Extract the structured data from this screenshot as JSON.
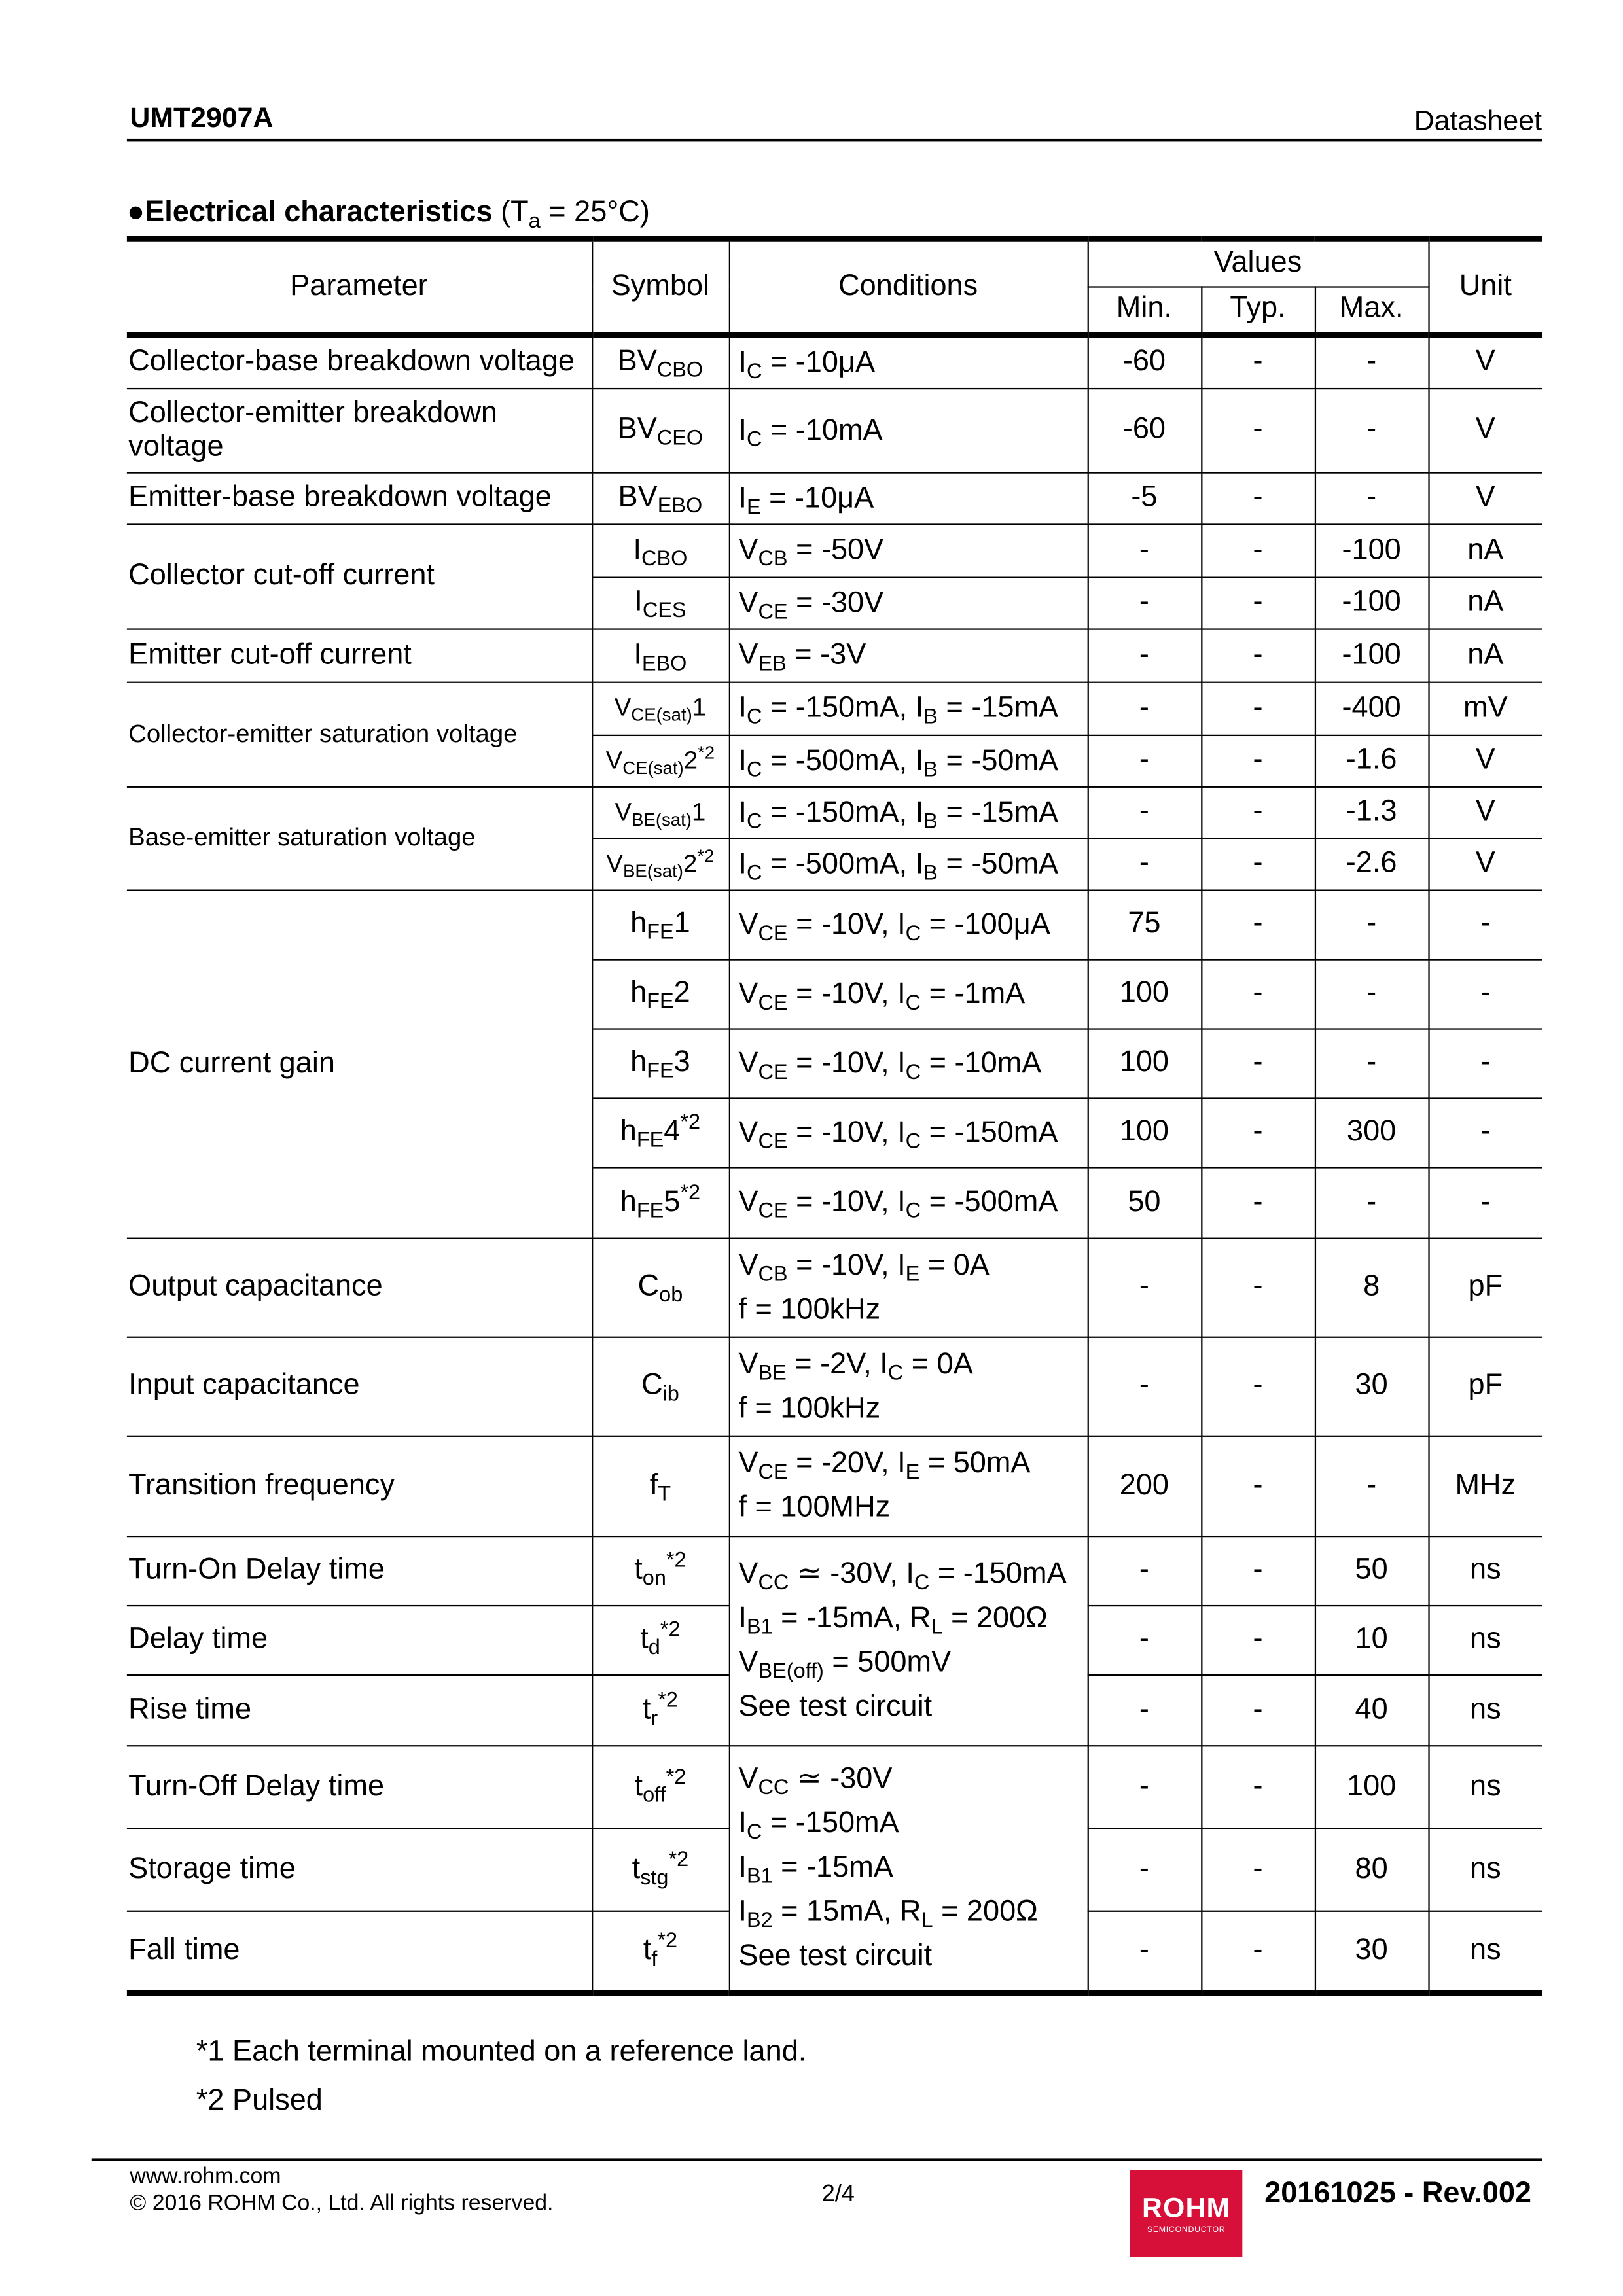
{
  "header": {
    "doc_title": "UMT2907A",
    "doc_type": "Datasheet"
  },
  "section": {
    "bullet": "●",
    "title": "Electrical characteristics",
    "condition": [
      " (T",
      {
        "sub": "a"
      },
      " = 25°C)"
    ]
  },
  "table": {
    "headers": {
      "parameter": "Parameter",
      "symbol": "Symbol",
      "conditions": "Conditions",
      "values": "Values",
      "min": "Min.",
      "typ": "Typ.",
      "max": "Max.",
      "unit": "Unit"
    },
    "rows": [
      {
        "param": "Collector-base breakdown voltage",
        "param_rows": 1,
        "symbol": [
          "BV",
          {
            "sub": "CBO"
          }
        ],
        "conditions": [
          [
            "I",
            {
              "sub": "C"
            },
            " = -10μA"
          ]
        ],
        "cond_rows": 1,
        "min": "-60",
        "typ": "-",
        "max": "-",
        "unit": "V"
      },
      {
        "param": "Collector-emitter breakdown voltage",
        "param_rows": 1,
        "symbol": [
          "BV",
          {
            "sub": "CEO"
          }
        ],
        "conditions": [
          [
            "I",
            {
              "sub": "C"
            },
            " = -10mA"
          ]
        ],
        "cond_rows": 1,
        "min": "-60",
        "typ": "-",
        "max": "-",
        "unit": "V"
      },
      {
        "param": "Emitter-base breakdown voltage",
        "param_rows": 1,
        "symbol": [
          "BV",
          {
            "sub": "EBO"
          }
        ],
        "conditions": [
          [
            "I",
            {
              "sub": "E"
            },
            " = -10μA"
          ]
        ],
        "cond_rows": 1,
        "min": "-5",
        "typ": "-",
        "max": "-",
        "unit": "V"
      },
      {
        "param": "Collector cut-off current",
        "param_rows": 2,
        "symbol": [
          "I",
          {
            "sub": "CBO"
          }
        ],
        "conditions": [
          [
            "V",
            {
              "sub": "CB"
            },
            " = -50V"
          ]
        ],
        "cond_rows": 1,
        "min": "-",
        "typ": "-",
        "max": "-100",
        "unit": "nA"
      },
      {
        "symbol": [
          "I",
          {
            "sub": "CES"
          }
        ],
        "conditions": [
          [
            "V",
            {
              "sub": "CE"
            },
            " = -30V"
          ]
        ],
        "cond_rows": 1,
        "min": "-",
        "typ": "-",
        "max": "-100",
        "unit": "nA"
      },
      {
        "param": "Emitter cut-off current",
        "param_rows": 1,
        "symbol": [
          "I",
          {
            "sub": "EBO"
          }
        ],
        "conditions": [
          [
            "V",
            {
              "sub": "EB"
            },
            " = -3V"
          ]
        ],
        "cond_rows": 1,
        "min": "-",
        "typ": "-",
        "max": "-100",
        "unit": "nA"
      },
      {
        "param": "Collector-emitter saturation voltage",
        "param_rows": 2,
        "param_small": true,
        "symbol_small": true,
        "symbol": [
          "V",
          {
            "sub": "CE(sat)"
          },
          "1"
        ],
        "conditions": [
          [
            "I",
            {
              "sub": "C"
            },
            " = -150mA, I",
            {
              "sub": "B"
            },
            " = -15mA"
          ]
        ],
        "cond_rows": 1,
        "min": "-",
        "typ": "-",
        "max": "-400",
        "unit": "mV"
      },
      {
        "symbol_small": true,
        "symbol": [
          "V",
          {
            "sub": "CE(sat)"
          },
          "2",
          {
            "sup": "*2"
          }
        ],
        "conditions": [
          [
            "I",
            {
              "sub": "C"
            },
            " = -500mA, I",
            {
              "sub": "B"
            },
            " = -50mA"
          ]
        ],
        "cond_rows": 1,
        "min": "-",
        "typ": "-",
        "max": "-1.6",
        "unit": "V"
      },
      {
        "param": "Base-emitter saturation voltage",
        "param_rows": 2,
        "param_small": true,
        "symbol_small": true,
        "symbol": [
          "V",
          {
            "sub": "BE(sat)"
          },
          "1"
        ],
        "conditions": [
          [
            "I",
            {
              "sub": "C"
            },
            " = -150mA, I",
            {
              "sub": "B"
            },
            " = -15mA"
          ]
        ],
        "cond_rows": 1,
        "min": "-",
        "typ": "-",
        "max": "-1.3",
        "unit": "V"
      },
      {
        "symbol_small": true,
        "symbol": [
          "V",
          {
            "sub": "BE(sat)"
          },
          "2",
          {
            "sup": "*2"
          }
        ],
        "conditions": [
          [
            "I",
            {
              "sub": "C"
            },
            " = -500mA, I",
            {
              "sub": "B"
            },
            " = -50mA"
          ]
        ],
        "cond_rows": 1,
        "min": "-",
        "typ": "-",
        "max": "-2.6",
        "unit": "V"
      },
      {
        "param": "DC current gain",
        "param_rows": 5,
        "symbol": [
          "h",
          {
            "sub": "FE"
          },
          "1"
        ],
        "conditions": [
          [
            "V",
            {
              "sub": "CE"
            },
            " = -10V, I",
            {
              "sub": "C"
            },
            " = -100μA"
          ]
        ],
        "cond_rows": 1,
        "min": "75",
        "typ": "-",
        "max": "-",
        "unit": "-"
      },
      {
        "symbol": [
          "h",
          {
            "sub": "FE"
          },
          "2"
        ],
        "conditions": [
          [
            "V",
            {
              "sub": "CE"
            },
            " = -10V, I",
            {
              "sub": "C"
            },
            " = -1mA"
          ]
        ],
        "cond_rows": 1,
        "min": "100",
        "typ": "-",
        "max": "-",
        "unit": "-"
      },
      {
        "symbol": [
          "h",
          {
            "sub": "FE"
          },
          "3"
        ],
        "conditions": [
          [
            "V",
            {
              "sub": "CE"
            },
            " = -10V, I",
            {
              "sub": "C"
            },
            " = -10mA"
          ]
        ],
        "cond_rows": 1,
        "min": "100",
        "typ": "-",
        "max": "-",
        "unit": "-"
      },
      {
        "symbol": [
          "h",
          {
            "sub": "FE"
          },
          "4",
          {
            "sup": "*2"
          }
        ],
        "conditions": [
          [
            "V",
            {
              "sub": "CE"
            },
            " = -10V, I",
            {
              "sub": "C"
            },
            " = -150mA"
          ]
        ],
        "cond_rows": 1,
        "min": "100",
        "typ": "-",
        "max": "300",
        "unit": "-"
      },
      {
        "symbol": [
          "h",
          {
            "sub": "FE"
          },
          "5",
          {
            "sup": "*2"
          }
        ],
        "conditions": [
          [
            "V",
            {
              "sub": "CE"
            },
            " = -10V, I",
            {
              "sub": "C"
            },
            " = -500mA"
          ]
        ],
        "cond_rows": 1,
        "min": "50",
        "typ": "-",
        "max": "-",
        "unit": "-"
      },
      {
        "param": "Output capacitance",
        "param_rows": 1,
        "symbol": [
          "C",
          {
            "sub": "ob"
          }
        ],
        "conditions": [
          [
            "V",
            {
              "sub": "CB"
            },
            " = -10V, I",
            {
              "sub": "E"
            },
            " = 0A"
          ],
          [
            "f = 100kHz"
          ]
        ],
        "cond_rows": 1,
        "min": "-",
        "typ": "-",
        "max": "8",
        "unit": "pF"
      },
      {
        "param": "Input capacitance",
        "param_rows": 1,
        "symbol": [
          "C",
          {
            "sub": "ib"
          }
        ],
        "conditions": [
          [
            "V",
            {
              "sub": "BE"
            },
            " = -2V, I",
            {
              "sub": "C"
            },
            " = 0A"
          ],
          [
            "f = 100kHz"
          ]
        ],
        "cond_rows": 1,
        "min": "-",
        "typ": "-",
        "max": "30",
        "unit": "pF"
      },
      {
        "param": "Transition frequency",
        "param_rows": 1,
        "symbol": [
          "f",
          {
            "sub": "T"
          }
        ],
        "conditions": [
          [
            "V",
            {
              "sub": "CE"
            },
            " = -20V, I",
            {
              "sub": "E"
            },
            " = 50mA"
          ],
          [
            "f = 100MHz"
          ]
        ],
        "cond_rows": 1,
        "min": "200",
        "typ": "-",
        "max": "-",
        "unit": "MHz"
      },
      {
        "param": "Turn-On Delay time",
        "param_rows": 1,
        "symbol": [
          "t",
          {
            "sub": "on"
          },
          {
            "sup": "*2"
          }
        ],
        "conditions": [
          [
            "V",
            {
              "sub": "CC"
            },
            " ≃ -30V, I",
            {
              "sub": "C"
            },
            " = -150mA"
          ],
          [
            "I",
            {
              "sub": "B1"
            },
            " = -15mA, R",
            {
              "sub": "L"
            },
            " = 200Ω"
          ],
          [
            "V",
            {
              "sub": "BE(off)"
            },
            " = 500mV"
          ],
          [
            "See test circuit"
          ]
        ],
        "cond_rows": 3,
        "min": "-",
        "typ": "-",
        "max": "50",
        "unit": "ns"
      },
      {
        "param": "Delay time",
        "param_rows": 1,
        "symbol": [
          "t",
          {
            "sub": "d"
          },
          {
            "sup": "*2"
          }
        ],
        "min": "-",
        "typ": "-",
        "max": "10",
        "unit": "ns"
      },
      {
        "param": "Rise time",
        "param_rows": 1,
        "symbol": [
          "t",
          {
            "sub": "r"
          },
          {
            "sup": "*2"
          }
        ],
        "min": "-",
        "typ": "-",
        "max": "40",
        "unit": "ns"
      },
      {
        "param": "Turn-Off Delay time",
        "param_rows": 1,
        "symbol": [
          "t",
          {
            "sub": "off"
          },
          {
            "sup": "*2"
          }
        ],
        "conditions": [
          [
            "V",
            {
              "sub": "CC"
            },
            " ≃ -30V"
          ],
          [
            "I",
            {
              "sub": "C"
            },
            " = -150mA"
          ],
          [
            "I",
            {
              "sub": "B1"
            },
            " = -15mA"
          ],
          [
            "I",
            {
              "sub": "B2"
            },
            " = 15mA, R",
            {
              "sub": "L"
            },
            " = 200Ω"
          ],
          [
            "See test circuit"
          ]
        ],
        "cond_rows": 3,
        "min": "-",
        "typ": "-",
        "max": "100",
        "unit": "ns"
      },
      {
        "param": "Storage time",
        "param_rows": 1,
        "symbol": [
          "t",
          {
            "sub": "stg"
          },
          {
            "sup": "*2"
          }
        ],
        "min": "-",
        "typ": "-",
        "max": "80",
        "unit": "ns"
      },
      {
        "param": "Fall time",
        "param_rows": 1,
        "symbol": [
          "t",
          {
            "sub": "f"
          },
          {
            "sup": "*2"
          }
        ],
        "min": "-",
        "typ": "-",
        "max": "30",
        "unit": "ns"
      }
    ]
  },
  "footnotes": [
    "*1 Each terminal mounted on a reference land.",
    "*2 Pulsed"
  ],
  "footer": {
    "url": "www.rohm.com",
    "copyright": "© 2016 ROHM Co., Ltd. All rights reserved.",
    "page": "2/4",
    "logo_text": "ROHM",
    "logo_sub": "SEMICONDUCTOR",
    "logo_color": "#d7103a",
    "revision": "20161025 - Rev.002"
  }
}
